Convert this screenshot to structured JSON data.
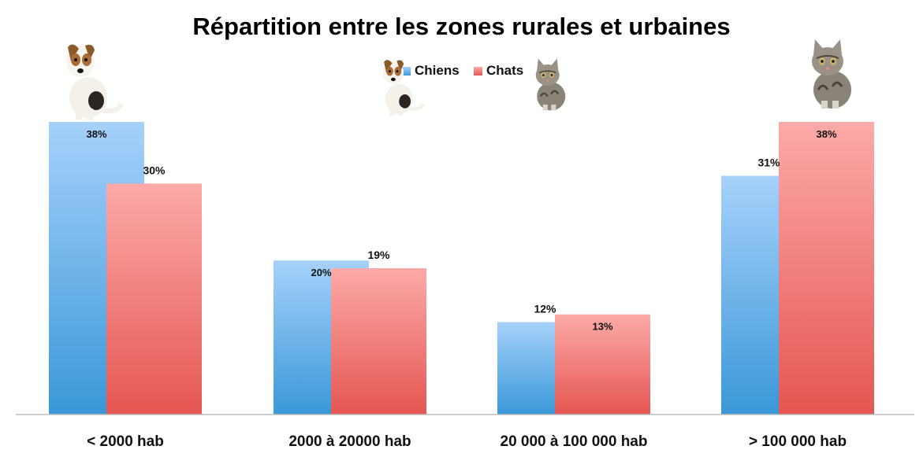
{
  "chart_data": {
    "type": "bar",
    "title": "Répartition entre les zones rurales et urbaines",
    "xlabel": "",
    "ylabel": "",
    "categories": [
      "< 2000 hab",
      "2000 à 20000 hab",
      "20 000 à 100 000 hab",
      "> 100 000 hab"
    ],
    "series": [
      {
        "name": "Chiens",
        "values": [
          38,
          20,
          12,
          31
        ],
        "labels": [
          "38%",
          "20%",
          "12%",
          "31%"
        ],
        "color_top": "#a6d1fb",
        "color_bottom": "#3a98d8"
      },
      {
        "name": "Chats",
        "values": [
          30,
          19,
          13,
          38
        ],
        "labels": [
          "30%",
          "19%",
          "13%",
          "38%"
        ],
        "color_top": "#fcaaa8",
        "color_bottom": "#e55652"
      }
    ],
    "ylim": [
      0,
      38
    ],
    "grid": false,
    "legend_position": "top-center",
    "axis_color": "#bdbdbd",
    "decorations": [
      "dog-icon",
      "cat-icon"
    ]
  }
}
